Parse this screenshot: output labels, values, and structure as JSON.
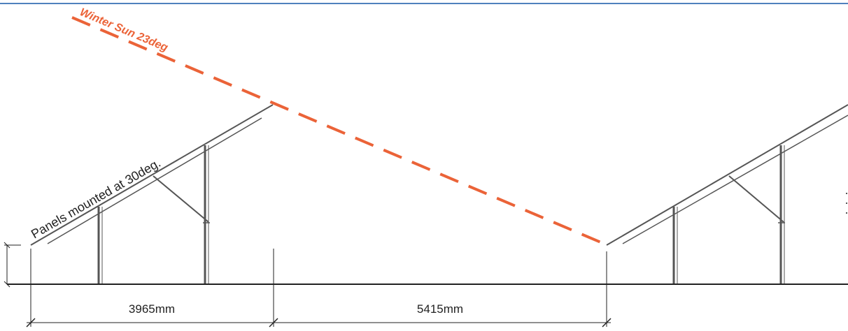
{
  "diagram": {
    "sun_label": "Winter Sun 23deg",
    "panel_label": "Panels mounted at 30deg.",
    "dimensions": [
      {
        "label": "3965mm"
      },
      {
        "label": "5415mm"
      }
    ],
    "colors": {
      "sun_line": "#EB6338",
      "ink": "#222222",
      "frame": "#4F81BD",
      "steel": "#555555"
    }
  }
}
